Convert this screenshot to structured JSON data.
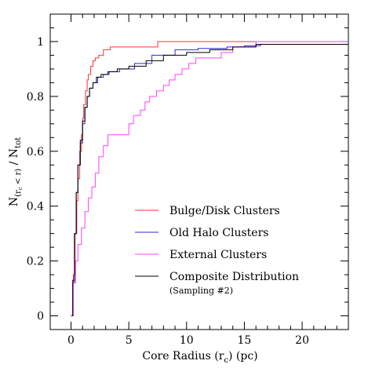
{
  "chart_data": {
    "type": "line",
    "step": true,
    "xlabel": "Core Radius (r",
    "xlabel_sub": "c",
    "xlabel_tail": ") (pc)",
    "ylabel_parts": {
      "n": "N",
      "sub": "(r",
      "subsub": "c",
      "subtail": " < r)",
      "mid": " / N",
      "tot": "tot"
    },
    "xlim": [
      -1.8,
      24
    ],
    "ylim": [
      -0.05,
      1.1
    ],
    "xticks": [
      0,
      5,
      10,
      15,
      20
    ],
    "xtick_labels": [
      "0",
      "5",
      "10",
      "15",
      "20"
    ],
    "yticks": [
      0,
      0.2,
      0.4,
      0.6,
      0.8,
      1
    ],
    "ytick_labels": [
      "0",
      "0.2",
      "0.4",
      "0.6",
      "0.8",
      "1"
    ],
    "grid": false,
    "legend_placement": "bottom-right",
    "series": [
      {
        "name": "Bulge/Disk Clusters",
        "color": "#ff3030",
        "x": [
          0,
          0.2,
          0.35,
          0.5,
          0.6,
          0.75,
          0.9,
          1.0,
          1.1,
          1.25,
          1.4,
          1.5,
          1.7,
          1.9,
          2.1,
          2.4,
          2.8,
          3.4,
          7.5,
          24
        ],
        "y": [
          0,
          0.15,
          0.3,
          0.42,
          0.5,
          0.6,
          0.66,
          0.72,
          0.77,
          0.82,
          0.86,
          0.88,
          0.91,
          0.93,
          0.94,
          0.95,
          0.97,
          0.98,
          1.0,
          1.0
        ]
      },
      {
        "name": "Old Halo Clusters",
        "color": "#2b2bd8",
        "x": [
          0,
          0.15,
          0.3,
          0.45,
          0.6,
          0.8,
          1.0,
          1.2,
          1.4,
          1.6,
          1.9,
          2.3,
          2.8,
          3.3,
          4.2,
          5.5,
          7.0,
          9.0,
          11.0,
          13.5,
          15.0,
          16.4,
          24
        ],
        "y": [
          0,
          0.12,
          0.3,
          0.45,
          0.55,
          0.63,
          0.7,
          0.76,
          0.8,
          0.83,
          0.85,
          0.87,
          0.88,
          0.89,
          0.9,
          0.92,
          0.95,
          0.97,
          0.975,
          0.98,
          0.985,
          0.99,
          1.0
        ]
      },
      {
        "name": "External Clusters",
        "color": "#ff40ff",
        "x": [
          0,
          0.2,
          0.4,
          0.6,
          0.9,
          1.2,
          1.5,
          1.8,
          2.1,
          2.4,
          2.8,
          3.2,
          5.0,
          5.4,
          6.0,
          6.4,
          6.8,
          7.4,
          8.0,
          8.5,
          9.0,
          9.6,
          10.2,
          10.8,
          13.0,
          14.0,
          16.0,
          24
        ],
        "y": [
          0,
          0.12,
          0.2,
          0.26,
          0.32,
          0.38,
          0.43,
          0.47,
          0.52,
          0.58,
          0.62,
          0.66,
          0.7,
          0.73,
          0.75,
          0.78,
          0.8,
          0.82,
          0.84,
          0.86,
          0.88,
          0.9,
          0.92,
          0.94,
          0.96,
          0.98,
          1.0,
          1.0
        ]
      },
      {
        "name": "Composite Distribution",
        "color": "#000000",
        "x": [
          0,
          0.15,
          0.3,
          0.45,
          0.6,
          0.8,
          1.0,
          1.2,
          1.4,
          1.6,
          1.9,
          2.2,
          2.6,
          3.2,
          4.0,
          5.0,
          6.5,
          8.0,
          10.0,
          12.0,
          14.0,
          16.0,
          24
        ],
        "y": [
          0,
          0.13,
          0.3,
          0.45,
          0.55,
          0.64,
          0.71,
          0.76,
          0.8,
          0.83,
          0.85,
          0.87,
          0.88,
          0.89,
          0.9,
          0.91,
          0.93,
          0.95,
          0.96,
          0.97,
          0.98,
          0.99,
          1.0
        ]
      }
    ],
    "legend_note": "(Sampling #2)"
  }
}
